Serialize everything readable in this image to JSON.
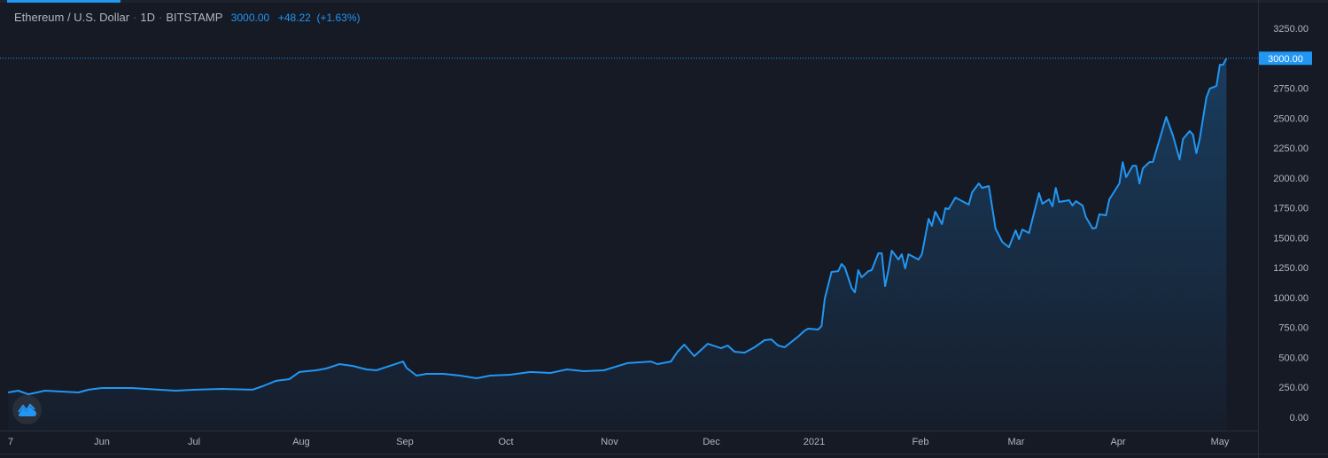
{
  "header": {
    "symbol": "Ethereum / U.S. Dollar",
    "interval": "1D",
    "exchange": "BITSTAMP",
    "last_price": "3000.00",
    "change": "+48.22",
    "change_pct": "(+1.63%)"
  },
  "price_label": "3000.00",
  "colors": {
    "line": "#2196f3",
    "background": "#161a25",
    "text": "#b2b5be",
    "price_label_bg": "#2196f3"
  },
  "icons": {
    "logo": "tradingview-cloud-icon"
  },
  "chart_data": {
    "type": "area",
    "title": "Ethereum / U.S. Dollar · 1D · BITSTAMP",
    "xlabel": "",
    "ylabel": "",
    "ylim": [
      0,
      3250
    ],
    "grid": false,
    "y_ticks": [
      "3250.00",
      "3000.00",
      "2750.00",
      "2500.00",
      "2250.00",
      "2000.00",
      "1750.00",
      "1500.00",
      "1250.00",
      "1000.00",
      "750.00",
      "500.00",
      "250.00",
      "0.00"
    ],
    "x_ticks": [
      "7",
      "Jun",
      "Jul",
      "Aug",
      "Sep",
      "Oct",
      "Nov",
      "Dec",
      "2021",
      "Feb",
      "Mar",
      "Apr",
      "May"
    ],
    "x": [
      "2020-05-04",
      "2020-05-07",
      "2020-05-10",
      "2020-05-15",
      "2020-05-20",
      "2020-05-25",
      "2020-05-28",
      "2020-06-01",
      "2020-06-10",
      "2020-06-18",
      "2020-06-23",
      "2020-06-29",
      "2020-07-07",
      "2020-07-16",
      "2020-07-19",
      "2020-07-23",
      "2020-07-27",
      "2020-07-30",
      "2020-08-04",
      "2020-08-07",
      "2020-08-11",
      "2020-08-15",
      "2020-08-19",
      "2020-08-22",
      "2020-08-26",
      "2020-08-30",
      "2020-08-31",
      "2020-09-03",
      "2020-09-06",
      "2020-09-11",
      "2020-09-16",
      "2020-09-21",
      "2020-09-25",
      "2020-10-01",
      "2020-10-07",
      "2020-10-13",
      "2020-10-18",
      "2020-10-23",
      "2020-10-29",
      "2020-11-05",
      "2020-11-12",
      "2020-11-14",
      "2020-11-18",
      "2020-11-20",
      "2020-11-22",
      "2020-11-25",
      "2020-11-29",
      "2020-12-03",
      "2020-12-05",
      "2020-12-07",
      "2020-12-10",
      "2020-12-13",
      "2020-12-16",
      "2020-12-18",
      "2020-12-20",
      "2020-12-22",
      "2020-12-26",
      "2020-12-28",
      "2020-12-29",
      "2021-01-01",
      "2021-01-02",
      "2021-01-03",
      "2021-01-05",
      "2021-01-07",
      "2021-01-08",
      "2021-01-09",
      "2021-01-11",
      "2021-01-12",
      "2021-01-13",
      "2021-01-14",
      "2021-01-16",
      "2021-01-17",
      "2021-01-19",
      "2021-01-20",
      "2021-01-21",
      "2021-01-22",
      "2021-01-23",
      "2021-01-25",
      "2021-01-26",
      "2021-01-27",
      "2021-01-28",
      "2021-01-31",
      "2021-02-01",
      "2021-02-03",
      "2021-02-04",
      "2021-02-05",
      "2021-02-07",
      "2021-02-08",
      "2021-02-09",
      "2021-02-11",
      "2021-02-15",
      "2021-02-16",
      "2021-02-18",
      "2021-02-19",
      "2021-02-21",
      "2021-02-23",
      "2021-02-25",
      "2021-02-27",
      "2021-03-01",
      "2021-03-02",
      "2021-03-03",
      "2021-03-05",
      "2021-03-08",
      "2021-03-09",
      "2021-03-11",
      "2021-03-12",
      "2021-03-13",
      "2021-03-14",
      "2021-03-17",
      "2021-03-18",
      "2021-03-19",
      "2021-03-21",
      "2021-03-22",
      "2021-03-24",
      "2021-03-25",
      "2021-03-26",
      "2021-03-28",
      "2021-03-29",
      "2021-04-01",
      "2021-04-02",
      "2021-04-03",
      "2021-04-05",
      "2021-04-06",
      "2021-04-07",
      "2021-04-08",
      "2021-04-10",
      "2021-04-11",
      "2021-04-15",
      "2021-04-17",
      "2021-04-19",
      "2021-04-20",
      "2021-04-22",
      "2021-04-23",
      "2021-04-24",
      "2021-04-25",
      "2021-04-27",
      "2021-04-28",
      "2021-04-30",
      "2021-05-01",
      "2021-05-02",
      "2021-05-03"
    ],
    "y": [
      207,
      222,
      192,
      222,
      215,
      207,
      230,
      244,
      244,
      230,
      222,
      230,
      237,
      230,
      259,
      304,
      318,
      378,
      392,
      407,
      444,
      429,
      400,
      392,
      429,
      466,
      414,
      348,
      363,
      363,
      348,
      326,
      348,
      355,
      378,
      370,
      400,
      385,
      392,
      452,
      466,
      444,
      466,
      548,
      607,
      511,
      614,
      577,
      600,
      548,
      540,
      585,
      644,
      651,
      600,
      585,
      674,
      725,
      740,
      733,
      762,
      992,
      1214,
      1221,
      1281,
      1251,
      1081,
      1044,
      1229,
      1170,
      1221,
      1229,
      1370,
      1370,
      1096,
      1229,
      1392,
      1318,
      1362,
      1244,
      1362,
      1318,
      1362,
      1658,
      1599,
      1718,
      1614,
      1747,
      1740,
      1836,
      1777,
      1880,
      1954,
      1917,
      1932,
      1577,
      1466,
      1421,
      1562,
      1488,
      1569,
      1540,
      1873,
      1784,
      1821,
      1762,
      1917,
      1799,
      1814,
      1769,
      1806,
      1769,
      1673,
      1577,
      1584,
      1695,
      1688,
      1821,
      1954,
      2132,
      2006,
      2102,
      2102,
      1954,
      2080,
      2132,
      2132,
      2510,
      2354,
      2154,
      2325,
      2391,
      2362,
      2206,
      2325,
      2672,
      2746,
      2769,
      2946,
      2946,
      3000
    ]
  }
}
